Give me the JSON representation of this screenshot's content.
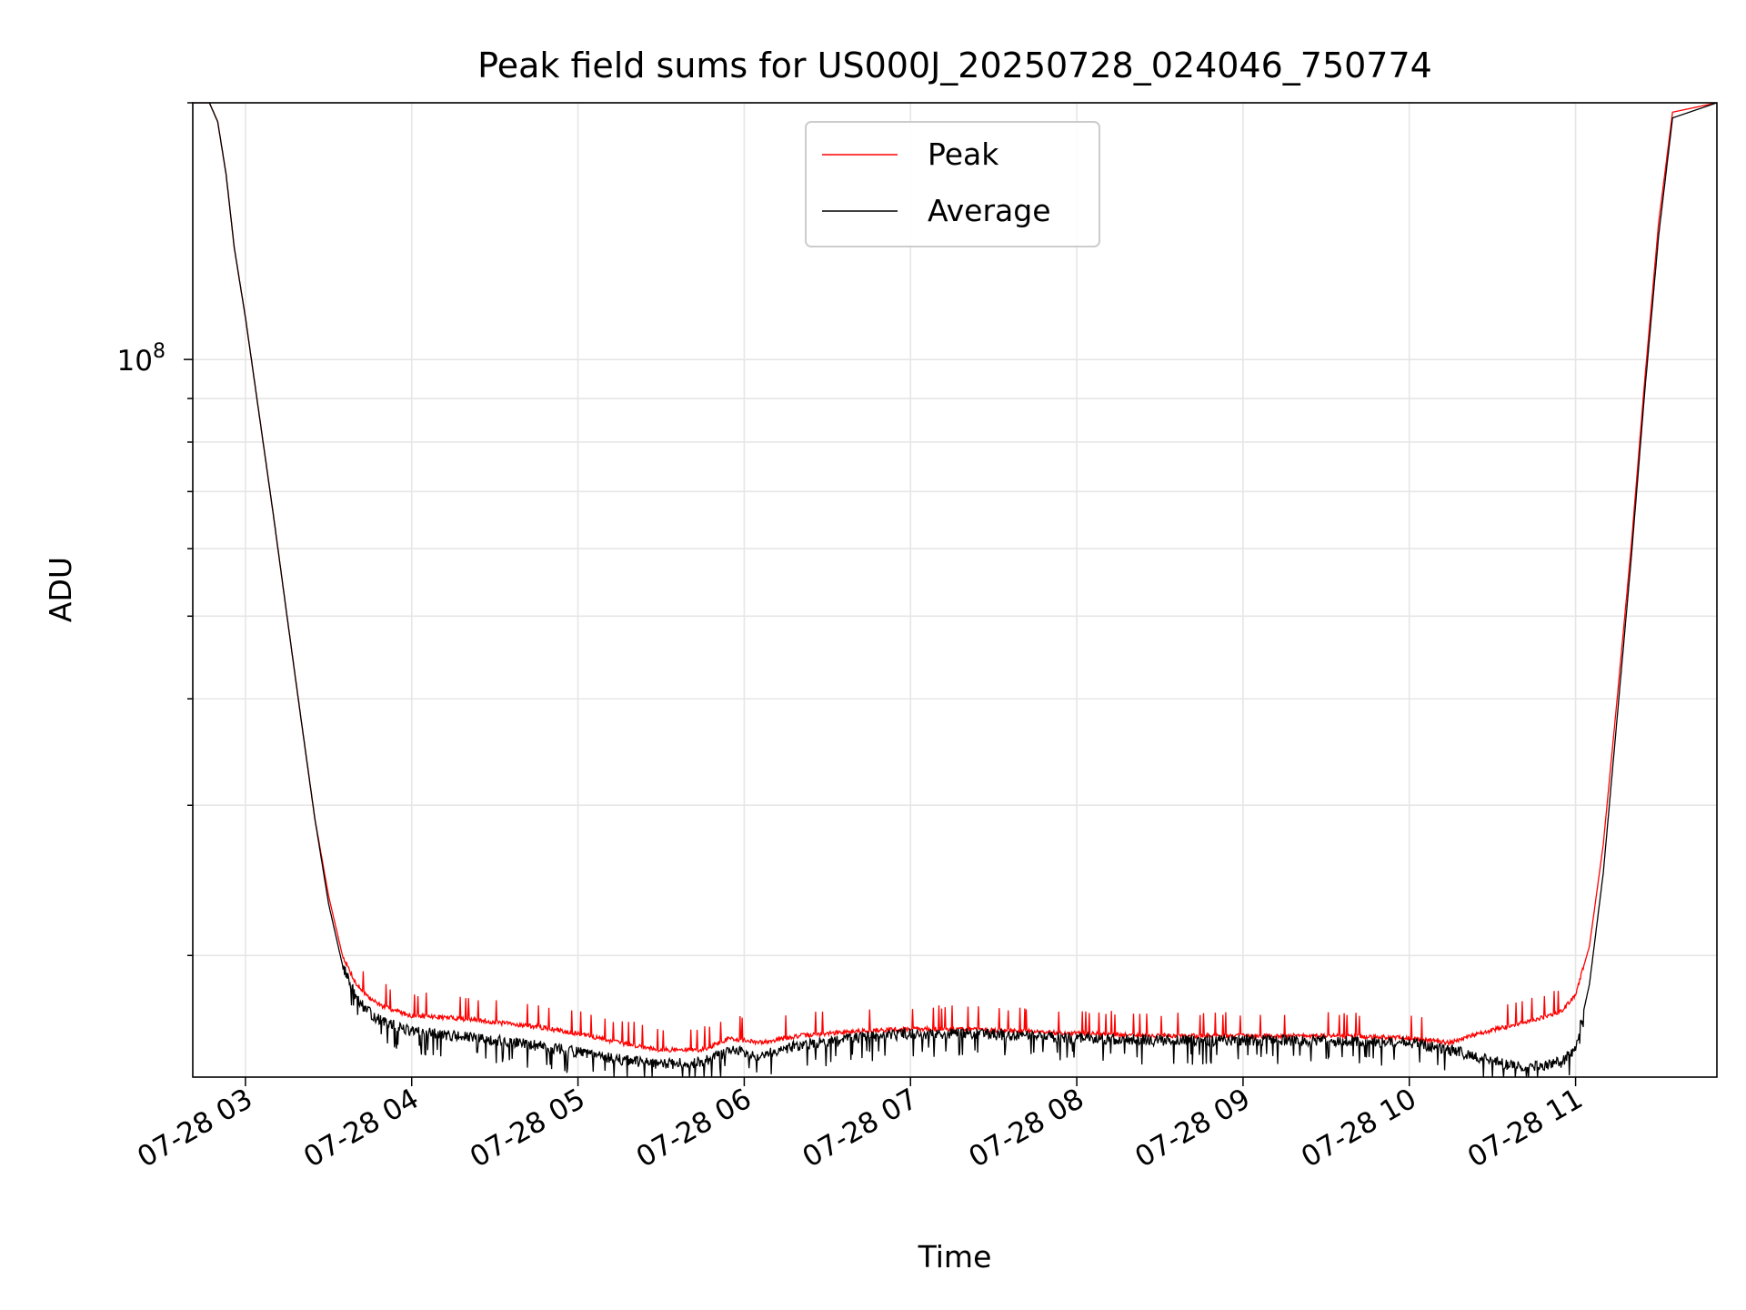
{
  "chart_data": {
    "type": "line",
    "title": "Peak field sums for US000J_20250728_024046_750774",
    "xlabel": "Time",
    "ylabel": "ADU",
    "yscale": "log",
    "grid": true,
    "legend_position": "upper-center",
    "x_ticks": [
      {
        "value": "2025-07-28T03:00",
        "label": "07-28 03"
      },
      {
        "value": "2025-07-28T04:00",
        "label": "07-28 04"
      },
      {
        "value": "2025-07-28T05:00",
        "label": "07-28 05"
      },
      {
        "value": "2025-07-28T06:00",
        "label": "07-28 06"
      },
      {
        "value": "2025-07-28T07:00",
        "label": "07-28 07"
      },
      {
        "value": "2025-07-28T08:00",
        "label": "07-28 08"
      },
      {
        "value": "2025-07-28T09:00",
        "label": "07-28 09"
      },
      {
        "value": "2025-07-28T10:00",
        "label": "07-28 10"
      },
      {
        "value": "2025-07-28T11:00",
        "label": "07-28 11"
      }
    ],
    "xlim": [
      "2025-07-28T02:41",
      "2025-07-28T11:51"
    ],
    "ylim": [
      14400000,
      200000000
    ],
    "y_major_ticks": [
      {
        "value": 100000000,
        "base": "10",
        "exponent": "8"
      }
    ],
    "y_minor_ticks": [
      20000000,
      30000000,
      40000000,
      50000000,
      60000000,
      70000000,
      80000000,
      90000000,
      200000000
    ],
    "series": [
      {
        "name": "Peak",
        "color": "#ff0000",
        "x": [
          "2025-07-28T02:41",
          "2025-07-28T02:47",
          "2025-07-28T02:50",
          "2025-07-28T02:53",
          "2025-07-28T02:56",
          "2025-07-28T03:00",
          "2025-07-28T03:05",
          "2025-07-28T03:10",
          "2025-07-28T03:15",
          "2025-07-28T03:20",
          "2025-07-28T03:25",
          "2025-07-28T03:30",
          "2025-07-28T03:35",
          "2025-07-28T03:40",
          "2025-07-28T03:45",
          "2025-07-28T03:50",
          "2025-07-28T04:00",
          "2025-07-28T04:15",
          "2025-07-28T04:30",
          "2025-07-28T04:45",
          "2025-07-28T05:00",
          "2025-07-28T05:15",
          "2025-07-28T05:30",
          "2025-07-28T05:45",
          "2025-07-28T05:55",
          "2025-07-28T06:05",
          "2025-07-28T06:20",
          "2025-07-28T06:40",
          "2025-07-28T07:00",
          "2025-07-28T07:20",
          "2025-07-28T07:40",
          "2025-07-28T08:00",
          "2025-07-28T08:30",
          "2025-07-28T09:00",
          "2025-07-28T09:30",
          "2025-07-28T10:00",
          "2025-07-28T10:15",
          "2025-07-28T10:25",
          "2025-07-28T10:35",
          "2025-07-28T10:45",
          "2025-07-28T10:55",
          "2025-07-28T11:00",
          "2025-07-28T11:05",
          "2025-07-28T11:10",
          "2025-07-28T11:15",
          "2025-07-28T11:20",
          "2025-07-28T11:25",
          "2025-07-28T11:30",
          "2025-07-28T11:35",
          "2025-07-28T11:51"
        ],
        "values": [
          200000000,
          200000000,
          190000000,
          165000000,
          135000000,
          112000000,
          86000000,
          66000000,
          50000000,
          38000000,
          29000000,
          23500000,
          20000000,
          18500000,
          17800000,
          17400000,
          17000000,
          16900000,
          16700000,
          16500000,
          16200000,
          15800000,
          15500000,
          15500000,
          16000000,
          15800000,
          16100000,
          16300000,
          16400000,
          16400000,
          16300000,
          16200000,
          16100000,
          16100000,
          16100000,
          16000000,
          15800000,
          16200000,
          16500000,
          16800000,
          17200000,
          18000000,
          20500000,
          27000000,
          40000000,
          60000000,
          95000000,
          145000000,
          195000000,
          200000000
        ]
      },
      {
        "name": "Average",
        "color": "#000000",
        "x": [
          "2025-07-28T02:41",
          "2025-07-28T02:47",
          "2025-07-28T02:50",
          "2025-07-28T02:53",
          "2025-07-28T02:56",
          "2025-07-28T03:00",
          "2025-07-28T03:05",
          "2025-07-28T03:10",
          "2025-07-28T03:15",
          "2025-07-28T03:20",
          "2025-07-28T03:25",
          "2025-07-28T03:30",
          "2025-07-28T03:35",
          "2025-07-28T03:40",
          "2025-07-28T03:45",
          "2025-07-28T03:50",
          "2025-07-28T04:00",
          "2025-07-28T04:15",
          "2025-07-28T04:30",
          "2025-07-28T04:45",
          "2025-07-28T05:00",
          "2025-07-28T05:15",
          "2025-07-28T05:30",
          "2025-07-28T05:45",
          "2025-07-28T05:55",
          "2025-07-28T06:05",
          "2025-07-28T06:20",
          "2025-07-28T06:40",
          "2025-07-28T07:00",
          "2025-07-28T07:20",
          "2025-07-28T07:40",
          "2025-07-28T08:00",
          "2025-07-28T08:30",
          "2025-07-28T09:00",
          "2025-07-28T09:30",
          "2025-07-28T10:00",
          "2025-07-28T10:15",
          "2025-07-28T10:25",
          "2025-07-28T10:35",
          "2025-07-28T10:45",
          "2025-07-28T10:55",
          "2025-07-28T11:00",
          "2025-07-28T11:05",
          "2025-07-28T11:10",
          "2025-07-28T11:15",
          "2025-07-28T11:20",
          "2025-07-28T11:25",
          "2025-07-28T11:30",
          "2025-07-28T11:35",
          "2025-07-28T11:51"
        ],
        "values": [
          200000000,
          200000000,
          190000000,
          165000000,
          135000000,
          112000000,
          86000000,
          66000000,
          50000000,
          38000000,
          29000000,
          23000000,
          19500000,
          17800000,
          17100000,
          16700000,
          16300000,
          16100000,
          15900000,
          15700000,
          15400000,
          15100000,
          14900000,
          15000000,
          15500000,
          15300000,
          15700000,
          16000000,
          16200000,
          16200000,
          16100000,
          16000000,
          15900000,
          15900000,
          15900000,
          15800000,
          15500000,
          15200000,
          14900000,
          14800000,
          15000000,
          15600000,
          18500000,
          25000000,
          38000000,
          58000000,
          92000000,
          140000000,
          192000000,
          200000000
        ]
      }
    ]
  }
}
